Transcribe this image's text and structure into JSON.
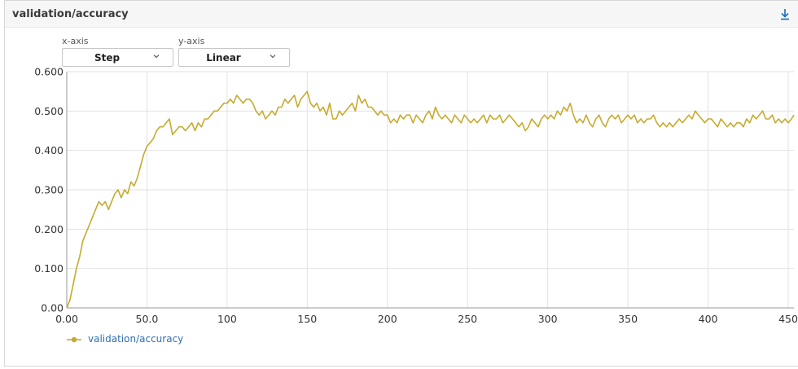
{
  "card": {
    "title": "validation/accuracy"
  },
  "controls": {
    "x_axis_label": "x-axis",
    "x_axis_value": "Step",
    "y_axis_label": "y-axis",
    "y_axis_value": "Linear"
  },
  "colors": {
    "series": "#c4ab2f",
    "grid": "#e2e2e2",
    "legend_text": "#2e6fb0",
    "accent": "#1a6bbd"
  },
  "icons": {
    "download": "download-icon",
    "dropdown": "chevron-down-icon"
  },
  "chart_data": {
    "type": "line",
    "title": "",
    "xlabel": "",
    "ylabel": "",
    "xlim": [
      0,
      455
    ],
    "ylim": [
      0,
      0.6
    ],
    "x_ticks": [
      0,
      50,
      100,
      150,
      200,
      250,
      300,
      350,
      400,
      450
    ],
    "x_tick_labels": [
      "0.00",
      "50.0",
      "100",
      "150",
      "200",
      "250",
      "300",
      "350",
      "400",
      "450"
    ],
    "y_ticks": [
      0,
      0.1,
      0.2,
      0.3,
      0.4,
      0.5,
      0.6
    ],
    "y_tick_labels": [
      "0.00",
      "0.100",
      "0.200",
      "0.300",
      "0.400",
      "0.500",
      "0.600"
    ],
    "grid": true,
    "legend_position": "bottom-left",
    "series": [
      {
        "name": "validation/accuracy",
        "points": [
          [
            0,
            0.0
          ],
          [
            2,
            0.02
          ],
          [
            4,
            0.06
          ],
          [
            6,
            0.1
          ],
          [
            8,
            0.13
          ],
          [
            10,
            0.17
          ],
          [
            12,
            0.19
          ],
          [
            14,
            0.21
          ],
          [
            16,
            0.23
          ],
          [
            18,
            0.25
          ],
          [
            20,
            0.27
          ],
          [
            22,
            0.26
          ],
          [
            24,
            0.27
          ],
          [
            26,
            0.25
          ],
          [
            28,
            0.27
          ],
          [
            30,
            0.29
          ],
          [
            32,
            0.3
          ],
          [
            34,
            0.28
          ],
          [
            36,
            0.3
          ],
          [
            38,
            0.29
          ],
          [
            40,
            0.32
          ],
          [
            42,
            0.31
          ],
          [
            44,
            0.33
          ],
          [
            46,
            0.36
          ],
          [
            48,
            0.39
          ],
          [
            50,
            0.41
          ],
          [
            52,
            0.42
          ],
          [
            54,
            0.43
          ],
          [
            56,
            0.45
          ],
          [
            58,
            0.46
          ],
          [
            60,
            0.46
          ],
          [
            62,
            0.47
          ],
          [
            64,
            0.48
          ],
          [
            66,
            0.44
          ],
          [
            68,
            0.45
          ],
          [
            70,
            0.46
          ],
          [
            72,
            0.46
          ],
          [
            74,
            0.45
          ],
          [
            76,
            0.46
          ],
          [
            78,
            0.47
          ],
          [
            80,
            0.45
          ],
          [
            82,
            0.47
          ],
          [
            84,
            0.46
          ],
          [
            86,
            0.48
          ],
          [
            88,
            0.48
          ],
          [
            90,
            0.49
          ],
          [
            92,
            0.5
          ],
          [
            94,
            0.5
          ],
          [
            96,
            0.51
          ],
          [
            98,
            0.52
          ],
          [
            100,
            0.52
          ],
          [
            102,
            0.53
          ],
          [
            104,
            0.52
          ],
          [
            106,
            0.54
          ],
          [
            108,
            0.53
          ],
          [
            110,
            0.52
          ],
          [
            112,
            0.53
          ],
          [
            114,
            0.53
          ],
          [
            116,
            0.52
          ],
          [
            118,
            0.5
          ],
          [
            120,
            0.49
          ],
          [
            122,
            0.5
          ],
          [
            124,
            0.48
          ],
          [
            126,
            0.49
          ],
          [
            128,
            0.5
          ],
          [
            130,
            0.49
          ],
          [
            132,
            0.51
          ],
          [
            134,
            0.51
          ],
          [
            136,
            0.53
          ],
          [
            138,
            0.52
          ],
          [
            140,
            0.53
          ],
          [
            142,
            0.54
          ],
          [
            144,
            0.51
          ],
          [
            146,
            0.53
          ],
          [
            148,
            0.54
          ],
          [
            150,
            0.55
          ],
          [
            152,
            0.52
          ],
          [
            154,
            0.51
          ],
          [
            156,
            0.52
          ],
          [
            158,
            0.5
          ],
          [
            160,
            0.51
          ],
          [
            162,
            0.49
          ],
          [
            164,
            0.52
          ],
          [
            166,
            0.48
          ],
          [
            168,
            0.48
          ],
          [
            170,
            0.5
          ],
          [
            172,
            0.49
          ],
          [
            174,
            0.5
          ],
          [
            176,
            0.51
          ],
          [
            178,
            0.52
          ],
          [
            180,
            0.5
          ],
          [
            182,
            0.54
          ],
          [
            184,
            0.52
          ],
          [
            186,
            0.53
          ],
          [
            188,
            0.51
          ],
          [
            190,
            0.51
          ],
          [
            192,
            0.5
          ],
          [
            194,
            0.49
          ],
          [
            196,
            0.5
          ],
          [
            198,
            0.49
          ],
          [
            200,
            0.49
          ],
          [
            202,
            0.47
          ],
          [
            204,
            0.48
          ],
          [
            206,
            0.47
          ],
          [
            208,
            0.49
          ],
          [
            210,
            0.48
          ],
          [
            212,
            0.49
          ],
          [
            214,
            0.49
          ],
          [
            216,
            0.47
          ],
          [
            218,
            0.49
          ],
          [
            220,
            0.48
          ],
          [
            222,
            0.47
          ],
          [
            224,
            0.49
          ],
          [
            226,
            0.5
          ],
          [
            228,
            0.48
          ],
          [
            230,
            0.51
          ],
          [
            232,
            0.49
          ],
          [
            234,
            0.48
          ],
          [
            236,
            0.49
          ],
          [
            238,
            0.48
          ],
          [
            240,
            0.47
          ],
          [
            242,
            0.49
          ],
          [
            244,
            0.48
          ],
          [
            246,
            0.47
          ],
          [
            248,
            0.49
          ],
          [
            250,
            0.48
          ],
          [
            252,
            0.47
          ],
          [
            254,
            0.48
          ],
          [
            256,
            0.47
          ],
          [
            258,
            0.48
          ],
          [
            260,
            0.49
          ],
          [
            262,
            0.47
          ],
          [
            264,
            0.49
          ],
          [
            266,
            0.48
          ],
          [
            268,
            0.48
          ],
          [
            270,
            0.49
          ],
          [
            272,
            0.47
          ],
          [
            274,
            0.48
          ],
          [
            276,
            0.49
          ],
          [
            278,
            0.48
          ],
          [
            280,
            0.47
          ],
          [
            282,
            0.46
          ],
          [
            284,
            0.47
          ],
          [
            286,
            0.45
          ],
          [
            288,
            0.46
          ],
          [
            290,
            0.48
          ],
          [
            292,
            0.47
          ],
          [
            294,
            0.46
          ],
          [
            296,
            0.48
          ],
          [
            298,
            0.49
          ],
          [
            300,
            0.48
          ],
          [
            302,
            0.49
          ],
          [
            304,
            0.48
          ],
          [
            306,
            0.5
          ],
          [
            308,
            0.49
          ],
          [
            310,
            0.51
          ],
          [
            312,
            0.5
          ],
          [
            314,
            0.52
          ],
          [
            316,
            0.49
          ],
          [
            318,
            0.47
          ],
          [
            320,
            0.48
          ],
          [
            322,
            0.47
          ],
          [
            324,
            0.49
          ],
          [
            326,
            0.47
          ],
          [
            328,
            0.46
          ],
          [
            330,
            0.48
          ],
          [
            332,
            0.49
          ],
          [
            334,
            0.47
          ],
          [
            336,
            0.46
          ],
          [
            338,
            0.48
          ],
          [
            340,
            0.49
          ],
          [
            342,
            0.48
          ],
          [
            344,
            0.49
          ],
          [
            346,
            0.47
          ],
          [
            348,
            0.48
          ],
          [
            350,
            0.49
          ],
          [
            352,
            0.48
          ],
          [
            354,
            0.49
          ],
          [
            356,
            0.47
          ],
          [
            358,
            0.48
          ],
          [
            360,
            0.47
          ],
          [
            362,
            0.48
          ],
          [
            364,
            0.48
          ],
          [
            366,
            0.49
          ],
          [
            368,
            0.47
          ],
          [
            370,
            0.46
          ],
          [
            372,
            0.47
          ],
          [
            374,
            0.46
          ],
          [
            376,
            0.47
          ],
          [
            378,
            0.46
          ],
          [
            380,
            0.47
          ],
          [
            382,
            0.48
          ],
          [
            384,
            0.47
          ],
          [
            386,
            0.48
          ],
          [
            388,
            0.49
          ],
          [
            390,
            0.48
          ],
          [
            392,
            0.5
          ],
          [
            394,
            0.49
          ],
          [
            396,
            0.48
          ],
          [
            398,
            0.47
          ],
          [
            400,
            0.48
          ],
          [
            402,
            0.48
          ],
          [
            404,
            0.47
          ],
          [
            406,
            0.46
          ],
          [
            408,
            0.48
          ],
          [
            410,
            0.47
          ],
          [
            412,
            0.46
          ],
          [
            414,
            0.47
          ],
          [
            416,
            0.46
          ],
          [
            418,
            0.47
          ],
          [
            420,
            0.47
          ],
          [
            422,
            0.46
          ],
          [
            424,
            0.48
          ],
          [
            426,
            0.47
          ],
          [
            428,
            0.49
          ],
          [
            430,
            0.48
          ],
          [
            432,
            0.49
          ],
          [
            434,
            0.5
          ],
          [
            436,
            0.48
          ],
          [
            438,
            0.48
          ],
          [
            440,
            0.49
          ],
          [
            442,
            0.47
          ],
          [
            444,
            0.48
          ],
          [
            446,
            0.47
          ],
          [
            448,
            0.48
          ],
          [
            450,
            0.47
          ],
          [
            452,
            0.48
          ],
          [
            454,
            0.49
          ]
        ]
      }
    ]
  }
}
